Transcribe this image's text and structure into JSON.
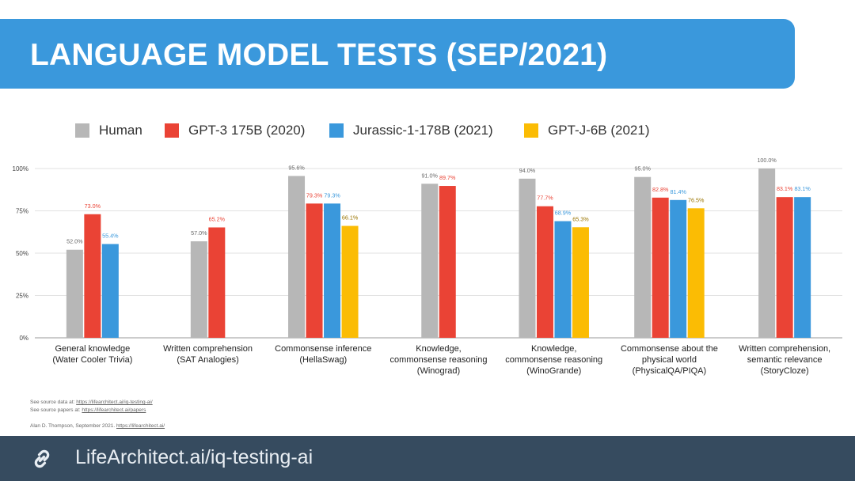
{
  "header": {
    "title": "LANGUAGE MODEL TESTS (SEP/2021)"
  },
  "colors": {
    "header_bg": "#3a98dc",
    "footer_bg": "#364b5f"
  },
  "chart_data": {
    "type": "bar",
    "title": "",
    "xlabel": "",
    "ylabel": "",
    "ylim": [
      0,
      100
    ],
    "yticks": [
      "0%",
      "25%",
      "50%",
      "75%",
      "100%"
    ],
    "grid": true,
    "legend_position": "top",
    "categories": [
      [
        "General knowledge",
        "(Water Cooler Trivia)"
      ],
      [
        "Written comprehension",
        "(SAT Analogies)"
      ],
      [
        "Commonsense inference",
        "(HellaSwag)"
      ],
      [
        "Knowledge,",
        "commonsense reasoning",
        "(Winograd)"
      ],
      [
        "Knowledge,",
        "commonsense reasoning",
        "(WinoGrande)"
      ],
      [
        "Commonsense about the",
        "physical world",
        "(PhysicalQA/PIQA)"
      ],
      [
        "Written comprehension,",
        "semantic relevance",
        "(StoryCloze)"
      ]
    ],
    "series": [
      {
        "name": "Human",
        "color": "#b7b7b7",
        "label_color": "#666666",
        "values": [
          52.0,
          57.0,
          95.6,
          91.0,
          94.0,
          95.0,
          100.0
        ],
        "labels": [
          "52.0%",
          "57.0%",
          "95.6%",
          "91.0%",
          "94.0%",
          "95.0%",
          "100.0%"
        ]
      },
      {
        "name": "GPT-3 175B (2020)",
        "color": "#ea4335",
        "label_color": "#ea4335",
        "values": [
          73.0,
          65.2,
          79.3,
          89.7,
          77.7,
          82.8,
          83.1
        ],
        "labels": [
          "73.0%",
          "65.2%",
          "79.3%",
          "89.7%",
          "77.7%",
          "82.8%",
          "83.1%"
        ]
      },
      {
        "name": "Jurassic-1-178B (2021)",
        "color": "#3a98dc",
        "label_color": "#3a98dc",
        "values": [
          55.4,
          null,
          79.3,
          null,
          68.9,
          81.4,
          83.1
        ],
        "labels": [
          "55.4%",
          null,
          "79.3%",
          null,
          "68.9%",
          "81.4%",
          "83.1%"
        ]
      },
      {
        "name": "GPT-J-6B (2021)",
        "color": "#fbbc04",
        "label_color": "#9a7400",
        "values": [
          null,
          null,
          66.1,
          null,
          65.3,
          76.5,
          null
        ],
        "labels": [
          null,
          null,
          "66.1%",
          null,
          "65.3%",
          "76.5%",
          null
        ]
      }
    ]
  },
  "sources": {
    "data_prefix": "See source data at: ",
    "data_link": "https://lifearchitect.ai/iq-testing-ai/",
    "papers_prefix": "See source papers at: ",
    "papers_link": "https://lifearchitect.ai/papers",
    "author_prefix": "Alan D. Thompson, September 2021. ",
    "author_link": "https://lifearchitect.ai/"
  },
  "footer": {
    "link_text": "LifeArchitect.ai/iq-testing-ai",
    "icon": "link-icon"
  }
}
